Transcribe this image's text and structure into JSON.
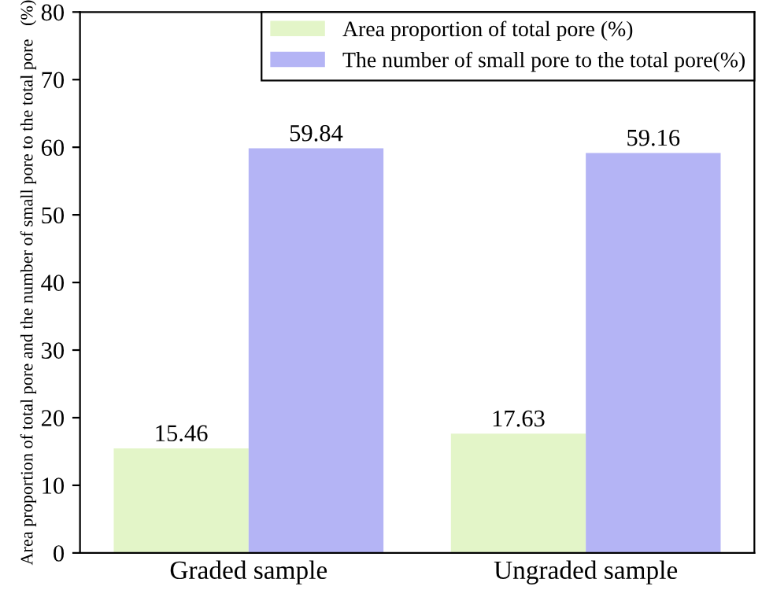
{
  "chart_data": {
    "type": "bar",
    "ylabel": "Area proportion of total pore and the number of small pore to the total pore   (%)",
    "categories": [
      "Graded sample",
      "Ungraded sample"
    ],
    "series": [
      {
        "name": "Area proportion of total pore (%)",
        "color": "#e3f5c8",
        "values": [
          15.46,
          17.63
        ]
      },
      {
        "name": "The number of small pore to the total pore(%)",
        "color": "#b4b4f5",
        "values": [
          59.84,
          59.16
        ]
      }
    ],
    "ylim": [
      0,
      80
    ],
    "yticks": [
      0,
      10,
      20,
      30,
      40,
      50,
      60,
      70,
      80
    ],
    "data_labels": true,
    "legend": "top right",
    "grid": false
  }
}
